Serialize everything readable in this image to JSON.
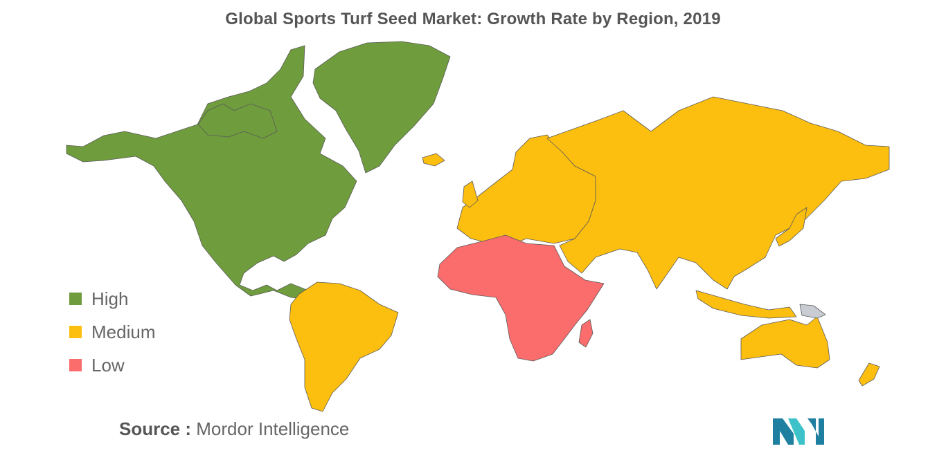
{
  "title": "Global Sports Turf Seed Market: Growth Rate by Region, 2019",
  "legend": [
    {
      "label": "High",
      "color": "#6f9c3d"
    },
    {
      "label": "Medium",
      "color": "#fcbe0f"
    },
    {
      "label": "Low",
      "color": "#fb6c6c"
    }
  ],
  "no_data_color": "#c9cdd3",
  "regions": {
    "north_america": "High",
    "greenland": "High",
    "south_america": "Medium",
    "europe": "Medium",
    "asia": "Medium",
    "oceania": "Medium",
    "africa": "Low"
  },
  "source": {
    "label": "Source :",
    "name": "Mordor Intelligence"
  },
  "logo": {
    "name": "mordor-intelligence-logo",
    "colors": [
      "#1e7fa0",
      "#3cc2c8"
    ]
  }
}
